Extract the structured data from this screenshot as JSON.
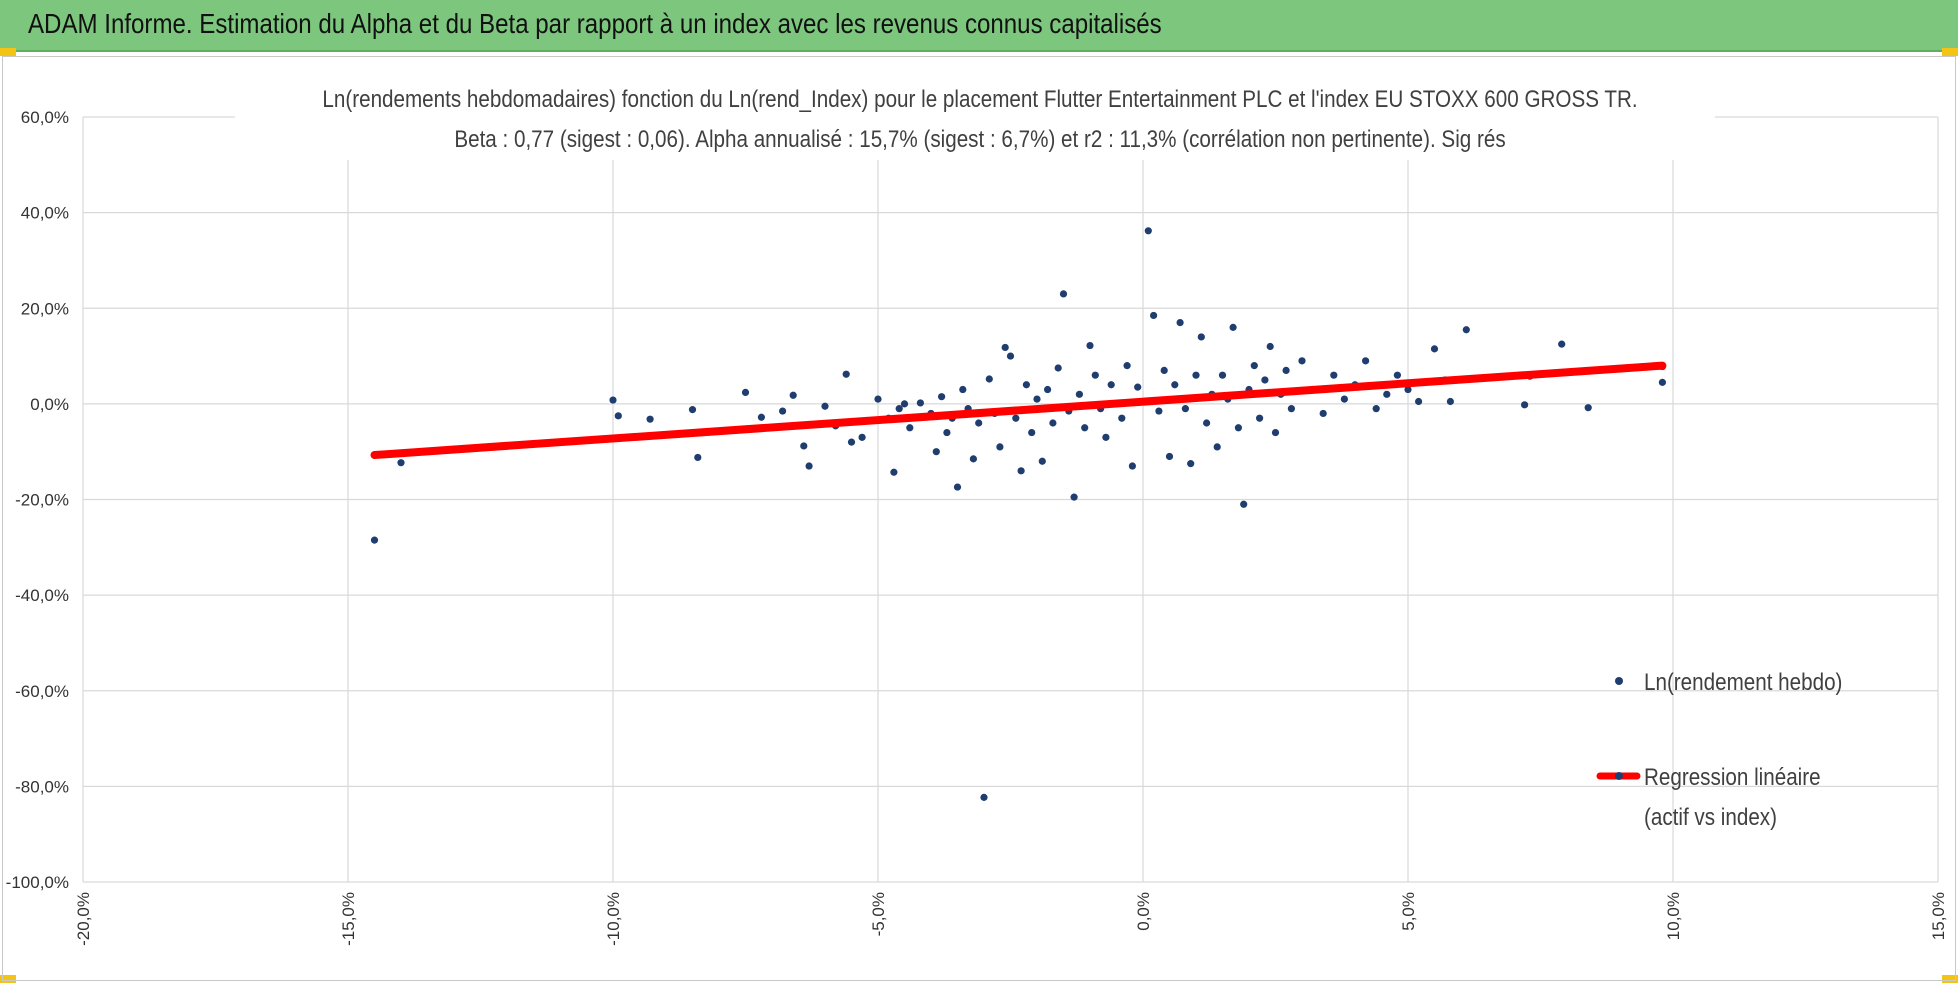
{
  "header": {
    "title": "ADAM Informe. Estimation du Alpha et du Beta par rapport à un index avec les revenus connus capitalisés"
  },
  "colors": {
    "header_bg": "#7dc67d",
    "accent_corner": "#f3c316",
    "points": "#1f3d6e",
    "regression": "#ff0000",
    "grid": "#d9d9d9"
  },
  "chart_data": {
    "type": "scatter",
    "title": "Ln(rendements hebdomadaires) fonction du Ln(rend_Index) pour le placement Flutter Entertainment PLC et l'index EU STOXX 600 GROSS TR.",
    "subtitle": "Beta : 0,77 (sigest : 0,06).  Alpha annualisé : 15,7% (sigest : 6,7%) et r2 : 11,3% (corrélation non pertinente). Sig rés",
    "xlim": [
      -0.2,
      0.15
    ],
    "ylim": [
      -1.0,
      0.6
    ],
    "x_ticks": [
      "-20,0%",
      "-15,0%",
      "-10,0%",
      "-5,0%",
      "0,0%",
      "5,0%",
      "10,0%",
      "15,0%"
    ],
    "y_ticks": [
      "60,0%",
      "40,0%",
      "20,0%",
      "0,0%",
      "-20,0%",
      "-40,0%",
      "-60,0%",
      "-80,0%",
      "-100,0%"
    ],
    "grid": true,
    "legend_position": "right",
    "series": [
      {
        "name": "Ln(rendement hebdo)",
        "kind": "scatter",
        "points": [
          [
            -0.145,
            -0.285
          ],
          [
            -0.14,
            -0.123
          ],
          [
            -0.1,
            0.008
          ],
          [
            -0.099,
            -0.025
          ],
          [
            -0.093,
            -0.032
          ],
          [
            -0.085,
            -0.012
          ],
          [
            -0.084,
            -0.112
          ],
          [
            -0.075,
            0.024
          ],
          [
            -0.072,
            -0.028
          ],
          [
            -0.068,
            -0.015
          ],
          [
            -0.066,
            0.018
          ],
          [
            -0.064,
            -0.088
          ],
          [
            -0.063,
            -0.13
          ],
          [
            -0.06,
            -0.005
          ],
          [
            -0.058,
            -0.046
          ],
          [
            -0.056,
            0.062
          ],
          [
            -0.055,
            -0.08
          ],
          [
            -0.053,
            -0.07
          ],
          [
            -0.05,
            0.01
          ],
          [
            -0.048,
            -0.03
          ],
          [
            -0.047,
            -0.143
          ],
          [
            -0.046,
            -0.01
          ],
          [
            -0.045,
            0.0
          ],
          [
            -0.044,
            -0.05
          ],
          [
            -0.042,
            0.002
          ],
          [
            -0.04,
            -0.02
          ],
          [
            -0.039,
            -0.1
          ],
          [
            -0.038,
            0.015
          ],
          [
            -0.037,
            -0.06
          ],
          [
            -0.036,
            -0.03
          ],
          [
            -0.035,
            -0.174
          ],
          [
            -0.034,
            0.03
          ],
          [
            -0.033,
            -0.01
          ],
          [
            -0.032,
            -0.115
          ],
          [
            -0.031,
            -0.04
          ],
          [
            -0.03,
            -0.823
          ],
          [
            -0.029,
            0.052
          ],
          [
            -0.028,
            -0.02
          ],
          [
            -0.027,
            -0.09
          ],
          [
            -0.026,
            0.118
          ],
          [
            -0.025,
            0.1
          ],
          [
            -0.024,
            -0.03
          ],
          [
            -0.023,
            -0.14
          ],
          [
            -0.022,
            0.04
          ],
          [
            -0.021,
            -0.06
          ],
          [
            -0.02,
            0.01
          ],
          [
            -0.019,
            -0.12
          ],
          [
            -0.018,
            0.03
          ],
          [
            -0.017,
            -0.04
          ],
          [
            -0.016,
            0.075
          ],
          [
            -0.015,
            0.23
          ],
          [
            -0.014,
            -0.015
          ],
          [
            -0.013,
            -0.195
          ],
          [
            -0.012,
            0.02
          ],
          [
            -0.011,
            -0.05
          ],
          [
            -0.01,
            0.122
          ],
          [
            -0.009,
            0.06
          ],
          [
            -0.008,
            -0.01
          ],
          [
            -0.007,
            -0.07
          ],
          [
            -0.006,
            0.04
          ],
          [
            -0.005,
            0.0
          ],
          [
            -0.004,
            -0.03
          ],
          [
            -0.003,
            0.08
          ],
          [
            -0.002,
            -0.13
          ],
          [
            -0.001,
            0.035
          ],
          [
            0.001,
            0.362
          ],
          [
            0.002,
            0.185
          ],
          [
            0.003,
            -0.015
          ],
          [
            0.004,
            0.07
          ],
          [
            0.005,
            -0.11
          ],
          [
            0.006,
            0.04
          ],
          [
            0.007,
            0.17
          ],
          [
            0.008,
            -0.01
          ],
          [
            0.009,
            -0.125
          ],
          [
            0.01,
            0.06
          ],
          [
            0.011,
            0.14
          ],
          [
            0.012,
            -0.04
          ],
          [
            0.013,
            0.02
          ],
          [
            0.014,
            -0.09
          ],
          [
            0.015,
            0.06
          ],
          [
            0.016,
            0.01
          ],
          [
            0.017,
            0.16
          ],
          [
            0.018,
            -0.05
          ],
          [
            0.019,
            -0.21
          ],
          [
            0.02,
            0.03
          ],
          [
            0.021,
            0.08
          ],
          [
            0.022,
            -0.03
          ],
          [
            0.023,
            0.05
          ],
          [
            0.024,
            0.12
          ],
          [
            0.025,
            -0.06
          ],
          [
            0.026,
            0.02
          ],
          [
            0.027,
            0.07
          ],
          [
            0.028,
            -0.01
          ],
          [
            0.03,
            0.09
          ],
          [
            0.032,
            0.03
          ],
          [
            0.034,
            -0.02
          ],
          [
            0.036,
            0.06
          ],
          [
            0.038,
            0.01
          ],
          [
            0.04,
            0.04
          ],
          [
            0.042,
            0.09
          ],
          [
            0.044,
            -0.01
          ],
          [
            0.046,
            0.02
          ],
          [
            0.048,
            0.06
          ],
          [
            0.05,
            0.03
          ],
          [
            0.052,
            0.005
          ],
          [
            0.055,
            0.115
          ],
          [
            0.057,
            0.05
          ],
          [
            0.058,
            0.005
          ],
          [
            0.061,
            0.155
          ],
          [
            0.072,
            -0.002
          ],
          [
            0.073,
            0.058
          ],
          [
            0.079,
            0.125
          ],
          [
            0.084,
            -0.008
          ],
          [
            0.098,
            0.078
          ],
          [
            0.098,
            0.045
          ]
        ]
      },
      {
        "name": "Regression linéaire (actif vs index)",
        "kind": "line",
        "points": [
          [
            -0.145,
            -0.107
          ],
          [
            0.098,
            0.08
          ]
        ]
      }
    ],
    "legend": [
      {
        "label": "Ln(rendement hebdo)"
      },
      {
        "label_line1": "Regression linéaire",
        "label_line2": "(actif vs index)"
      }
    ]
  }
}
